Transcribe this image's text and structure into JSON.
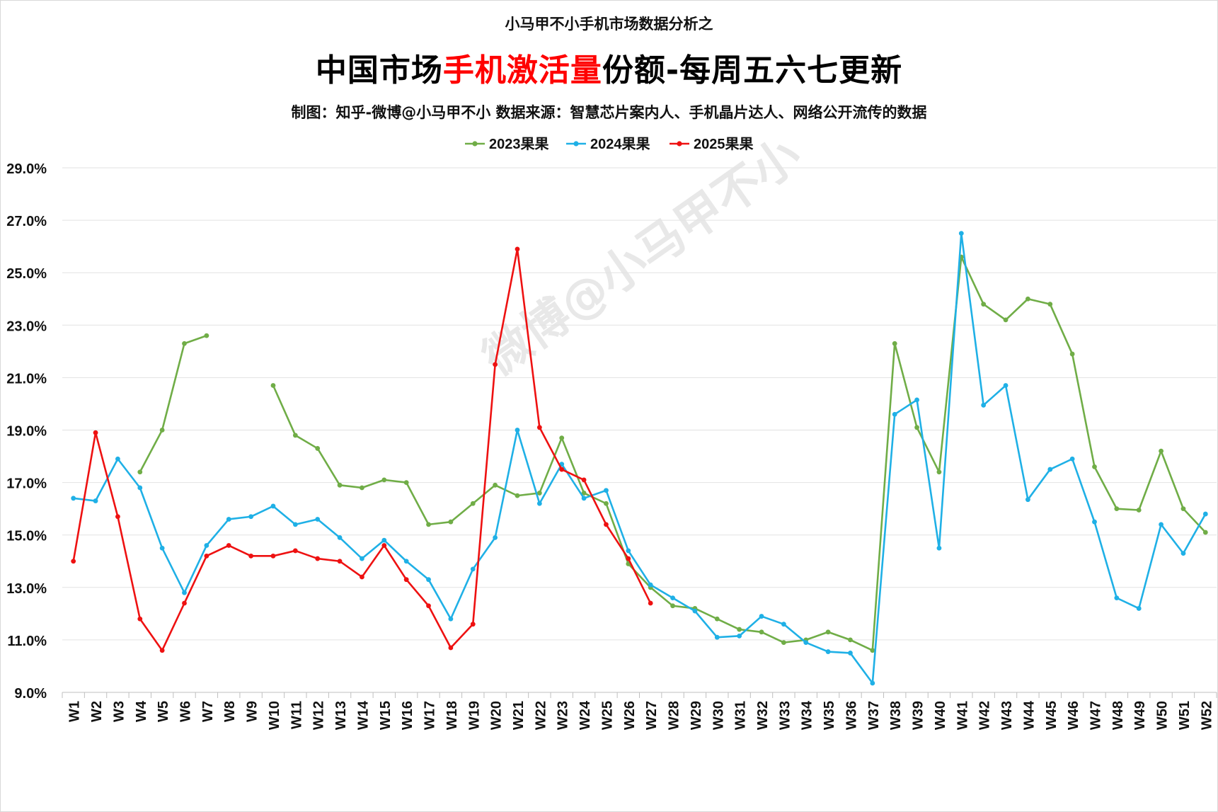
{
  "header": {
    "supertitle": "小马甲不小手机市场数据分析之",
    "title_part1": "中国市场",
    "title_highlight": "手机激活量",
    "title_part2": "份额-每周五六七更新",
    "credit": "制图：知乎-微博@小马甲不小  数据来源：智慧芯片案内人、手机晶片达人、网络公开流传的数据"
  },
  "watermark": "微博@小马甲不小",
  "chart_data": {
    "type": "line",
    "title": "中国市场手机激活量份额-每周五六七更新",
    "xlabel": "",
    "ylabel": "",
    "ylim": [
      9.0,
      29.0
    ],
    "y_ticks": [
      9.0,
      11.0,
      13.0,
      15.0,
      17.0,
      19.0,
      21.0,
      23.0,
      25.0,
      27.0,
      29.0
    ],
    "y_tick_labels": [
      "9.0%",
      "11.0%",
      "13.0%",
      "15.0%",
      "17.0%",
      "19.0%",
      "21.0%",
      "23.0%",
      "25.0%",
      "27.0%",
      "29.0%"
    ],
    "grid": true,
    "legend_position": "top-center",
    "categories": [
      "W1",
      "W2",
      "W3",
      "W4",
      "W5",
      "W6",
      "W7",
      "W8",
      "W9",
      "W10",
      "W11",
      "W12",
      "W13",
      "W14",
      "W15",
      "W16",
      "W17",
      "W18",
      "W19",
      "W20",
      "W21",
      "W22",
      "W23",
      "W24",
      "W25",
      "W26",
      "W27",
      "W28",
      "W29",
      "W30",
      "W31",
      "W32",
      "W33",
      "W34",
      "W35",
      "W36",
      "W37",
      "W38",
      "W39",
      "W40",
      "W41",
      "W42",
      "W43",
      "W44",
      "W45",
      "W46",
      "W47",
      "W48",
      "W49",
      "W50",
      "W51",
      "W52"
    ],
    "series": [
      {
        "name": "2023果果",
        "color": "#70ad47",
        "values": [
          null,
          null,
          null,
          17.4,
          19.0,
          22.3,
          22.6,
          null,
          null,
          20.7,
          18.8,
          18.3,
          16.9,
          16.8,
          17.1,
          17.0,
          15.4,
          15.5,
          16.2,
          16.9,
          16.5,
          16.6,
          18.7,
          16.6,
          16.2,
          13.9,
          13.0,
          12.3,
          12.2,
          11.8,
          11.4,
          11.3,
          10.9,
          11.0,
          11.3,
          11.0,
          10.6,
          22.3,
          19.1,
          17.4,
          25.6,
          23.8,
          23.2,
          24.0,
          23.8,
          21.9,
          17.6,
          16.0,
          15.95,
          18.2,
          16.0,
          15.1
        ]
      },
      {
        "name": "2024果果",
        "color": "#1fb0e6",
        "values": [
          16.4,
          16.3,
          17.9,
          16.8,
          14.5,
          12.8,
          14.6,
          15.6,
          15.7,
          16.1,
          15.4,
          15.6,
          14.9,
          14.1,
          14.8,
          14.0,
          13.3,
          11.8,
          13.7,
          14.9,
          19.0,
          16.2,
          17.7,
          16.4,
          16.7,
          14.4,
          13.1,
          12.6,
          12.1,
          11.1,
          11.15,
          11.9,
          11.6,
          10.9,
          10.55,
          10.5,
          9.35,
          19.6,
          20.15,
          14.5,
          26.5,
          19.95,
          20.7,
          16.35,
          17.5,
          17.9,
          15.5,
          12.6,
          12.2,
          15.4,
          14.3,
          15.8
        ]
      },
      {
        "name": "2025果果",
        "color": "#ee1111",
        "values": [
          14.0,
          18.9,
          15.7,
          11.8,
          10.6,
          12.4,
          14.2,
          14.6,
          14.2,
          14.2,
          14.4,
          14.1,
          14.0,
          13.4,
          14.6,
          13.3,
          12.3,
          10.7,
          11.6,
          21.5,
          25.9,
          19.1,
          17.5,
          17.1,
          15.4,
          14.1,
          12.4,
          null,
          null,
          null,
          null,
          null,
          null,
          null,
          null,
          null,
          null,
          null,
          null,
          null,
          null,
          null,
          null,
          null,
          null,
          null,
          null,
          null,
          null,
          null,
          null,
          null
        ]
      }
    ]
  }
}
